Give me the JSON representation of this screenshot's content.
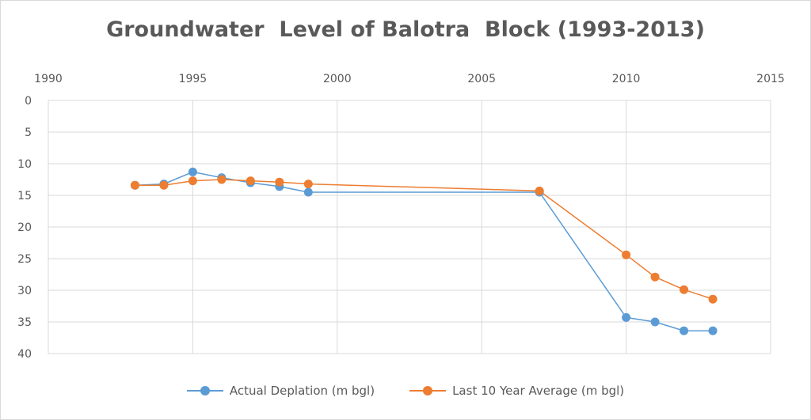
{
  "chart_data": {
    "type": "line",
    "title": "Groundwater  Level of Balotra  Block (1993-2013)",
    "xlabel": "",
    "ylabel": "",
    "xlim": [
      1990,
      2015
    ],
    "ylim": [
      0,
      40
    ],
    "y_inverted": true,
    "x_axis_position": "top",
    "x_ticks": [
      "1990",
      "1995",
      "2000",
      "2005",
      "2010",
      "2015"
    ],
    "y_ticks": [
      "0",
      "5",
      "10",
      "15",
      "20",
      "25",
      "30",
      "35",
      "40"
    ],
    "grid": true,
    "legend_position": "bottom",
    "series": [
      {
        "name": "Actual Deplation (m bgl)",
        "color": "#5B9BD5",
        "points": [
          [
            1993,
            13.4
          ],
          [
            1994,
            13.2
          ],
          [
            1995,
            11.3
          ],
          [
            1996,
            12.2
          ],
          [
            1997,
            13.0
          ],
          [
            1998,
            13.6
          ],
          [
            1999,
            14.5
          ],
          [
            2007,
            14.5
          ],
          [
            2010,
            34.3
          ],
          [
            2011,
            35.0
          ],
          [
            2012,
            36.4
          ],
          [
            2013,
            36.4
          ]
        ]
      },
      {
        "name": "Last 10 Year Average (m bgl)",
        "color": "#ED7D31",
        "points": [
          [
            1993,
            13.4
          ],
          [
            1994,
            13.4
          ],
          [
            1995,
            12.7
          ],
          [
            1996,
            12.5
          ],
          [
            1997,
            12.7
          ],
          [
            1998,
            12.9
          ],
          [
            1999,
            13.2
          ],
          [
            2007,
            14.3
          ],
          [
            2010,
            24.4
          ],
          [
            2011,
            27.9
          ],
          [
            2012,
            29.9
          ],
          [
            2013,
            31.4
          ]
        ]
      }
    ]
  }
}
